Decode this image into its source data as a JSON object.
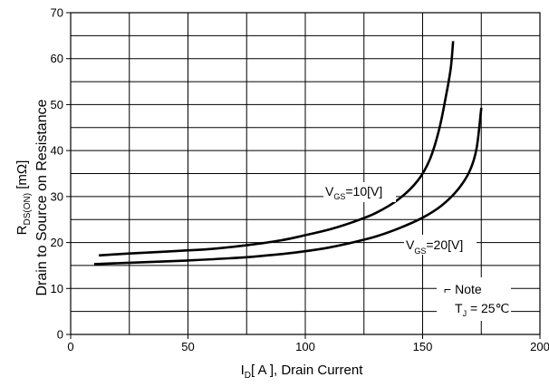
{
  "chart_data": {
    "type": "line",
    "xlabel": {
      "main": "I",
      "sub": "D",
      "rest": "[ A ], Drain Current"
    },
    "ylabel": {
      "line1_main": "R",
      "line1_sub": "DS(ON)",
      "line1_rest": " [mΩ]",
      "line2": "Drain to Source on Resistance"
    },
    "xlim": [
      0,
      200
    ],
    "ylim": [
      0,
      70
    ],
    "x_ticks": [
      "0",
      "50",
      "100",
      "150",
      "200"
    ],
    "y_ticks": [
      "0",
      "10",
      "20",
      "30",
      "40",
      "50",
      "60",
      "70"
    ],
    "grid": true,
    "series": [
      {
        "name": "V_GS=10[V]",
        "label": {
          "main": "V",
          "sub": "GS",
          "rest": "=10[V]"
        },
        "x": [
          12,
          25,
          40,
          50,
          60,
          75,
          90,
          100,
          110,
          120,
          130,
          140,
          148,
          153,
          157,
          160,
          162,
          163
        ],
        "y": [
          17.2,
          17.6,
          18.0,
          18.3,
          18.6,
          19.4,
          20.5,
          21.6,
          22.8,
          24.4,
          26.4,
          29.5,
          33.5,
          38.0,
          44.5,
          52.0,
          58.0,
          63.8
        ]
      },
      {
        "name": "V_GS=20[V]",
        "label": {
          "main": "V",
          "sub": "GS",
          "rest": "=20[V]"
        },
        "x": [
          10,
          25,
          50,
          75,
          90,
          100,
          110,
          120,
          130,
          140,
          150,
          158,
          165,
          170,
          173,
          175
        ],
        "y": [
          15.3,
          15.6,
          16.1,
          16.8,
          17.5,
          18.1,
          18.9,
          20.0,
          21.3,
          23.1,
          25.4,
          28.0,
          31.5,
          35.5,
          40.5,
          49.3
        ]
      }
    ],
    "note": {
      "line1": "Note",
      "line2_main": "T",
      "line2_sub": "J",
      "line2_rest": " = 25℃"
    }
  }
}
